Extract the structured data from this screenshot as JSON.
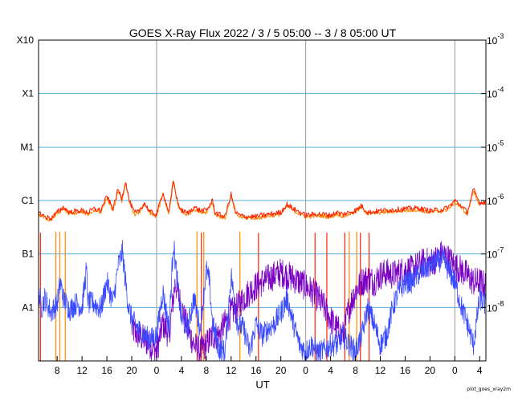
{
  "chart_data": {
    "type": "line",
    "title": "GOES X-Ray Flux   2022 /  3 /  5   05:00 --  3 /  8   05:00   UT",
    "xlabel": "UT",
    "credit": "plot_goes_xray2m",
    "y_scale": "log",
    "ylim": [
      1e-09,
      0.001
    ],
    "y_ticks_left": [
      {
        "label": "A1",
        "value": 1e-08
      },
      {
        "label": "B1",
        "value": 1e-07
      },
      {
        "label": "C1",
        "value": 1e-06
      },
      {
        "label": "M1",
        "value": 1e-05
      },
      {
        "label": "X1",
        "value": 0.0001
      },
      {
        "label": "X10",
        "value": 0.001
      }
    ],
    "y_ticks_right": [
      {
        "base": "10",
        "exp": "-8",
        "value": 1e-08
      },
      {
        "base": "10",
        "exp": "-7",
        "value": 1e-07
      },
      {
        "base": "10",
        "exp": "-6",
        "value": 1e-06
      },
      {
        "base": "10",
        "exp": "-5",
        "value": 1e-05
      },
      {
        "base": "10",
        "exp": "-4",
        "value": 0.0001
      },
      {
        "base": "10",
        "exp": "-3",
        "value": 0.001
      }
    ],
    "x_hours_range": [
      5,
      77
    ],
    "x_ticks": [
      {
        "label": "8",
        "hour": 8
      },
      {
        "label": "12",
        "hour": 12
      },
      {
        "label": "16",
        "hour": 16
      },
      {
        "label": "20",
        "hour": 20
      },
      {
        "label": "0",
        "hour": 24
      },
      {
        "label": "4",
        "hour": 28
      },
      {
        "label": "8",
        "hour": 32
      },
      {
        "label": "12",
        "hour": 36
      },
      {
        "label": "16",
        "hour": 40
      },
      {
        "label": "20",
        "hour": 44
      },
      {
        "label": "0",
        "hour": 48
      },
      {
        "label": "4",
        "hour": 52
      },
      {
        "label": "8",
        "hour": 56
      },
      {
        "label": "12",
        "hour": 60
      },
      {
        "label": "16",
        "hour": 64
      },
      {
        "label": "20",
        "hour": 68
      },
      {
        "label": "0",
        "hour": 72
      },
      {
        "label": "4",
        "hour": 76
      }
    ],
    "day_boundaries_hours": [
      24,
      48,
      72
    ],
    "grid": true,
    "colors": {
      "grid": "#5aaee0",
      "day_line": "#999999",
      "long_primary": "#ff2200",
      "long_secondary": "#ff8800",
      "short_primary": "#3b4cff",
      "short_secondary": "#7a00c4"
    },
    "series": [
      {
        "key": "long_primary",
        "hours": [
          5,
          6,
          7,
          8,
          9,
          10,
          11,
          12,
          13,
          14,
          15,
          16,
          17,
          17.8,
          18.4,
          19,
          19.6,
          20.4,
          21,
          22,
          23,
          24,
          25,
          26,
          26.7,
          27.4,
          28,
          29,
          30,
          31,
          32,
          33,
          33.4,
          34,
          35,
          36,
          36.7,
          37.5,
          38.5,
          40,
          42,
          44,
          45,
          46,
          48,
          50,
          51,
          52,
          53,
          54,
          56,
          57,
          58,
          60,
          62,
          64,
          66,
          68,
          70,
          71,
          72,
          73,
          74,
          75,
          76,
          77
        ],
        "values": [
          6e-07,
          5e-07,
          4.6e-07,
          6e-07,
          7.5e-07,
          6e-07,
          6.3e-07,
          6.5e-07,
          6e-07,
          7e-07,
          6.5e-07,
          1.2e-06,
          7e-07,
          1.6e-06,
          1.1e-06,
          2.3e-06,
          1e-06,
          6e-07,
          6e-07,
          9e-07,
          6e-07,
          5.5e-07,
          1.4e-06,
          6e-07,
          2.4e-06,
          9e-07,
          6.5e-07,
          5.8e-07,
          7.5e-07,
          6.5e-07,
          6.5e-07,
          1e-06,
          6e-07,
          5.5e-07,
          5e-07,
          1.3e-06,
          6e-07,
          5.2e-07,
          5e-07,
          5e-07,
          5.5e-07,
          6e-07,
          8.5e-07,
          7e-07,
          5.3e-07,
          5.6e-07,
          5.5e-07,
          5.3e-07,
          6e-07,
          5.5e-07,
          6.5e-07,
          8e-07,
          6e-07,
          6.4e-07,
          6.7e-07,
          7e-07,
          7.2e-07,
          6.4e-07,
          6.8e-07,
          7.5e-07,
          1e-06,
          8e-07,
          6e-07,
          1.6e-06,
          9e-07,
          9.5e-07
        ]
      },
      {
        "key": "long_secondary",
        "hours": [
          5,
          6,
          7,
          8,
          9,
          10,
          11,
          12,
          13,
          14,
          15,
          16,
          17,
          17.8,
          18.4,
          19,
          19.6,
          20.4,
          21,
          22,
          23,
          24,
          25,
          26,
          26.7,
          27.4,
          28,
          29,
          30,
          31,
          32,
          33,
          33.4,
          34,
          35,
          36,
          36.7,
          37.5,
          38.5,
          40,
          42,
          44,
          45,
          46,
          48,
          50,
          51,
          52,
          53,
          54,
          56,
          57,
          58,
          60,
          62,
          64,
          66,
          68,
          70,
          71,
          72,
          73,
          74,
          75,
          76,
          77
        ],
        "values": [
          5.6e-07,
          4.7e-07,
          4.3e-07,
          5.6e-07,
          7e-07,
          5.6e-07,
          5.9e-07,
          6.1e-07,
          5.6e-07,
          6.5e-07,
          6.1e-07,
          1.1e-06,
          6.5e-07,
          1.5e-06,
          1e-06,
          2.1e-06,
          9.3e-07,
          5.6e-07,
          5.6e-07,
          8.4e-07,
          5.6e-07,
          5.1e-07,
          1.3e-06,
          5.6e-07,
          2.2e-06,
          8.4e-07,
          6.1e-07,
          5.4e-07,
          7e-07,
          6.1e-07,
          6.1e-07,
          9.3e-07,
          5.6e-07,
          5.1e-07,
          4.7e-07,
          1.2e-06,
          5.6e-07,
          4.9e-07,
          4.7e-07,
          4.7e-07,
          5.1e-07,
          5.6e-07,
          7.9e-07,
          6.5e-07,
          4.9e-07,
          5.2e-07,
          5.1e-07,
          4.9e-07,
          5.6e-07,
          5.1e-07,
          6.1e-07,
          7.4e-07,
          5.6e-07,
          6e-07,
          6.2e-07,
          6.5e-07,
          6.7e-07,
          6e-07,
          6.3e-07,
          7e-07,
          9.3e-07,
          7.4e-07,
          5.6e-07,
          1.5e-06,
          8.4e-07,
          8.8e-07
        ]
      },
      {
        "key": "short_primary",
        "hours": [
          5,
          5.5,
          6,
          7,
          8,
          8.5,
          9,
          10,
          11,
          12,
          12.7,
          13,
          14,
          15,
          16,
          17,
          17.8,
          18.5,
          19,
          19.5,
          20,
          21,
          22,
          23,
          24,
          25,
          26,
          26.7,
          27.5,
          28,
          29,
          30,
          31,
          32,
          32.5,
          33,
          34,
          35,
          36,
          37,
          38,
          39,
          40,
          41,
          42,
          43,
          44,
          45,
          46,
          47,
          48,
          49,
          50,
          51,
          52,
          53,
          54,
          55,
          56,
          57,
          58,
          59,
          60,
          61,
          62,
          63,
          64,
          65,
          66,
          67,
          68,
          69,
          70,
          71,
          72,
          73,
          74,
          75,
          76,
          77
        ],
        "values": [
          2e-08,
          1e-08,
          1.5e-08,
          8e-09,
          1.2e-08,
          3e-08,
          1.5e-08,
          9e-09,
          1.2e-08,
          1e-08,
          5e-08,
          1.2e-08,
          1.2e-08,
          9e-09,
          3e-08,
          1.2e-08,
          6e-08,
          1.1e-07,
          3e-08,
          1e-08,
          6e-09,
          4e-09,
          3e-09,
          2.5e-09,
          3e-09,
          2e-08,
          4e-09,
          1.6e-07,
          2e-08,
          6e-09,
          4e-09,
          1.5e-08,
          4e-09,
          5e-08,
          3e-08,
          5e-09,
          1.7e-09,
          1.5e-09,
          4e-08,
          5e-09,
          4e-09,
          1.5e-09,
          5e-09,
          3e-09,
          4e-09,
          5e-09,
          8e-09,
          1.5e-08,
          5e-09,
          2e-09,
          1.5e-09,
          2e-09,
          1.4e-09,
          1.6e-09,
          2e-09,
          2e-09,
          3e-09,
          2e-09,
          1.5e-09,
          3e-09,
          1e-08,
          5e-09,
          2e-09,
          3e-09,
          1e-08,
          2e-08,
          3e-08,
          3e-08,
          4e-08,
          5e-08,
          6e-08,
          7e-08,
          8e-08,
          5e-08,
          3e-08,
          1.1e-08,
          5e-09,
          2e-09,
          1.5e-08,
          1.1e-08
        ]
      },
      {
        "key": "short_secondary",
        "hours": [
          20,
          21,
          22,
          23,
          24,
          25,
          26,
          27,
          28,
          29,
          30,
          31,
          32,
          33,
          34,
          35,
          36,
          37,
          38,
          39,
          40,
          41,
          42,
          43,
          44,
          45,
          46,
          47,
          48,
          49,
          50,
          51,
          52,
          53,
          54,
          55,
          56,
          57,
          58,
          59,
          60,
          61,
          62,
          63,
          64,
          65,
          66,
          67,
          68,
          69,
          70,
          71,
          72,
          73,
          74,
          75,
          76,
          77
        ],
        "values": [
          4e-09,
          3e-09,
          2.5e-09,
          2e-09,
          1.5e-09,
          5e-09,
          3e-09,
          3e-08,
          1e-08,
          4e-09,
          2e-09,
          1.5e-09,
          2e-09,
          3e-09,
          3e-09,
          5e-09,
          8e-09,
          1e-08,
          1.5e-08,
          2e-08,
          2.5e-08,
          3e-08,
          3.5e-08,
          4e-08,
          4.5e-08,
          4e-08,
          3.5e-08,
          3e-08,
          2.5e-08,
          2e-08,
          1.5e-08,
          1e-08,
          6e-09,
          4e-09,
          3e-09,
          1e-08,
          2e-08,
          3e-08,
          3.5e-08,
          3e-08,
          4e-08,
          4.5e-08,
          4e-08,
          4.5e-08,
          5e-08,
          5e-08,
          6e-08,
          7e-08,
          7e-08,
          8e-08,
          1e-07,
          8e-08,
          6e-08,
          5e-08,
          4e-08,
          3e-08,
          3e-08,
          2.5e-08
        ]
      }
    ],
    "dropouts": [
      {
        "series": "long_primary",
        "hours": [
          5.3,
          31.2,
          40.4,
          49.5,
          51.4,
          54.3,
          56.8,
          58.2
        ]
      },
      {
        "series": "long_secondary",
        "hours": [
          7.8,
          8.4,
          9.3,
          30.5,
          31.6,
          37.4,
          55.0,
          56.2
        ]
      }
    ]
  }
}
